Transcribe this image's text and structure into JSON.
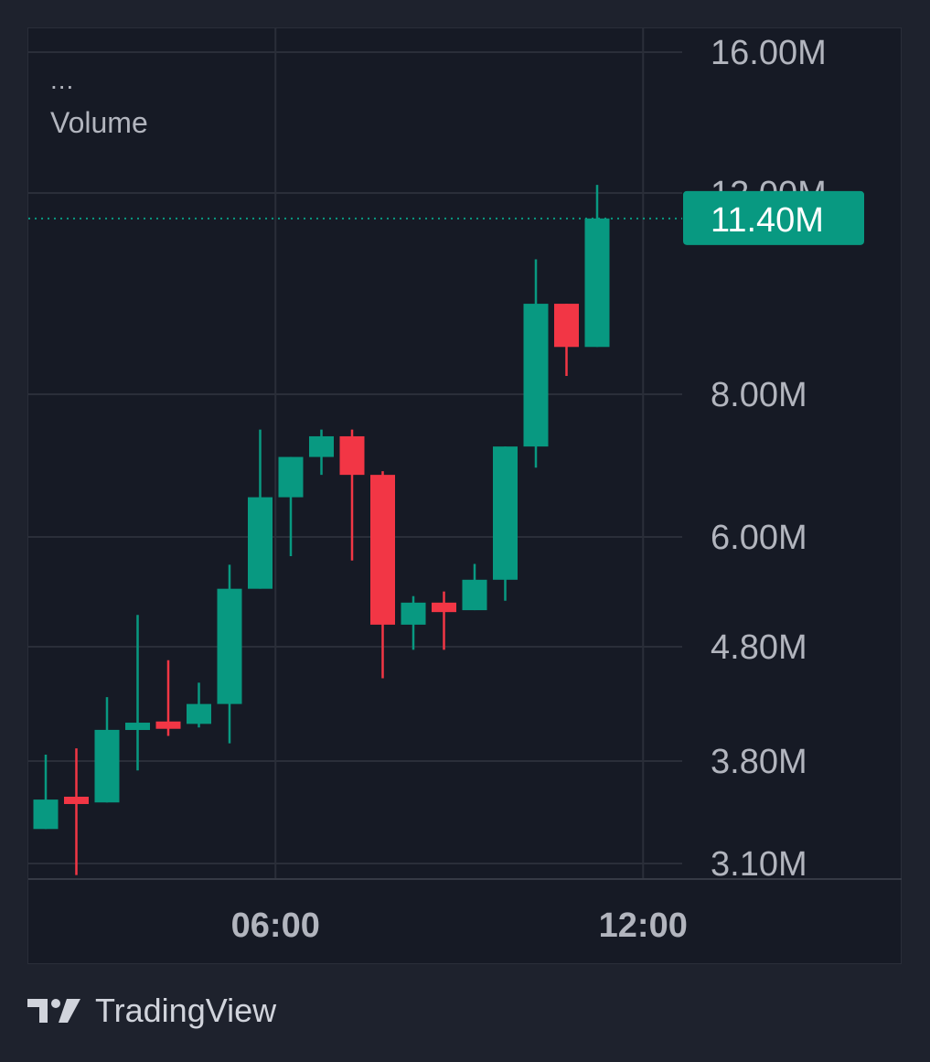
{
  "legend": {
    "dots": "...",
    "title": "Volume"
  },
  "brand": {
    "name": "TradingView"
  },
  "colors": {
    "up": "#089981",
    "down": "#f23645",
    "grid": "#2a2e39",
    "axis_text": "#b2b5be",
    "background": "#161a25"
  },
  "chart_data": {
    "type": "candlestick",
    "series_name": "Volume",
    "y_scale": "log",
    "y_ticks": [
      {
        "value": 3100000,
        "label": "3.10M"
      },
      {
        "value": 3800000,
        "label": "3.80M"
      },
      {
        "value": 4800000,
        "label": "4.80M"
      },
      {
        "value": 6000000,
        "label": "6.00M"
      },
      {
        "value": 8000000,
        "label": "8.00M"
      },
      {
        "value": 12000000,
        "label": "12.00M"
      },
      {
        "value": 16000000,
        "label": "16.00M"
      }
    ],
    "x_ticks": [
      {
        "index": 7.5,
        "label": "06:00"
      },
      {
        "index": 19.5,
        "label": "12:00"
      }
    ],
    "last_value": {
      "value": 11400000,
      "label": "11.40M"
    },
    "candles": [
      {
        "o": 3320000,
        "h": 3850000,
        "l": 3320000,
        "c": 3520000
      },
      {
        "o": 3540000,
        "h": 3900000,
        "l": 3030000,
        "c": 3500000
      },
      {
        "o": 3500000,
        "h": 4330000,
        "l": 3500000,
        "c": 4050000
      },
      {
        "o": 4070000,
        "h": 5120000,
        "l": 3730000,
        "c": 4110000
      },
      {
        "o": 4120000,
        "h": 4670000,
        "l": 4000000,
        "c": 4100000
      },
      {
        "o": 4100000,
        "h": 4460000,
        "l": 4070000,
        "c": 4270000
      },
      {
        "o": 4270000,
        "h": 5670000,
        "l": 3940000,
        "c": 5400000
      },
      {
        "o": 5400000,
        "h": 7450000,
        "l": 5400000,
        "c": 6500000
      },
      {
        "o": 6500000,
        "h": 7050000,
        "l": 5770000,
        "c": 7050000
      },
      {
        "o": 7050000,
        "h": 7450000,
        "l": 6800000,
        "c": 7350000
      },
      {
        "o": 7350000,
        "h": 7450000,
        "l": 5720000,
        "c": 6800000
      },
      {
        "o": 6800000,
        "h": 6850000,
        "l": 4500000,
        "c": 5020000
      },
      {
        "o": 5020000,
        "h": 5320000,
        "l": 4770000,
        "c": 5250000
      },
      {
        "o": 5250000,
        "h": 5370000,
        "l": 4770000,
        "c": 5150000
      },
      {
        "o": 5170000,
        "h": 5680000,
        "l": 5170000,
        "c": 5500000
      },
      {
        "o": 5500000,
        "h": 7200000,
        "l": 5270000,
        "c": 7200000
      },
      {
        "o": 7200000,
        "h": 10500000,
        "l": 6900000,
        "c": 9600000
      },
      {
        "o": 9600000,
        "h": 9600000,
        "l": 8300000,
        "c": 8800000
      },
      {
        "o": 8800000,
        "h": 12200000,
        "l": 8800000,
        "c": 11400000
      }
    ]
  }
}
